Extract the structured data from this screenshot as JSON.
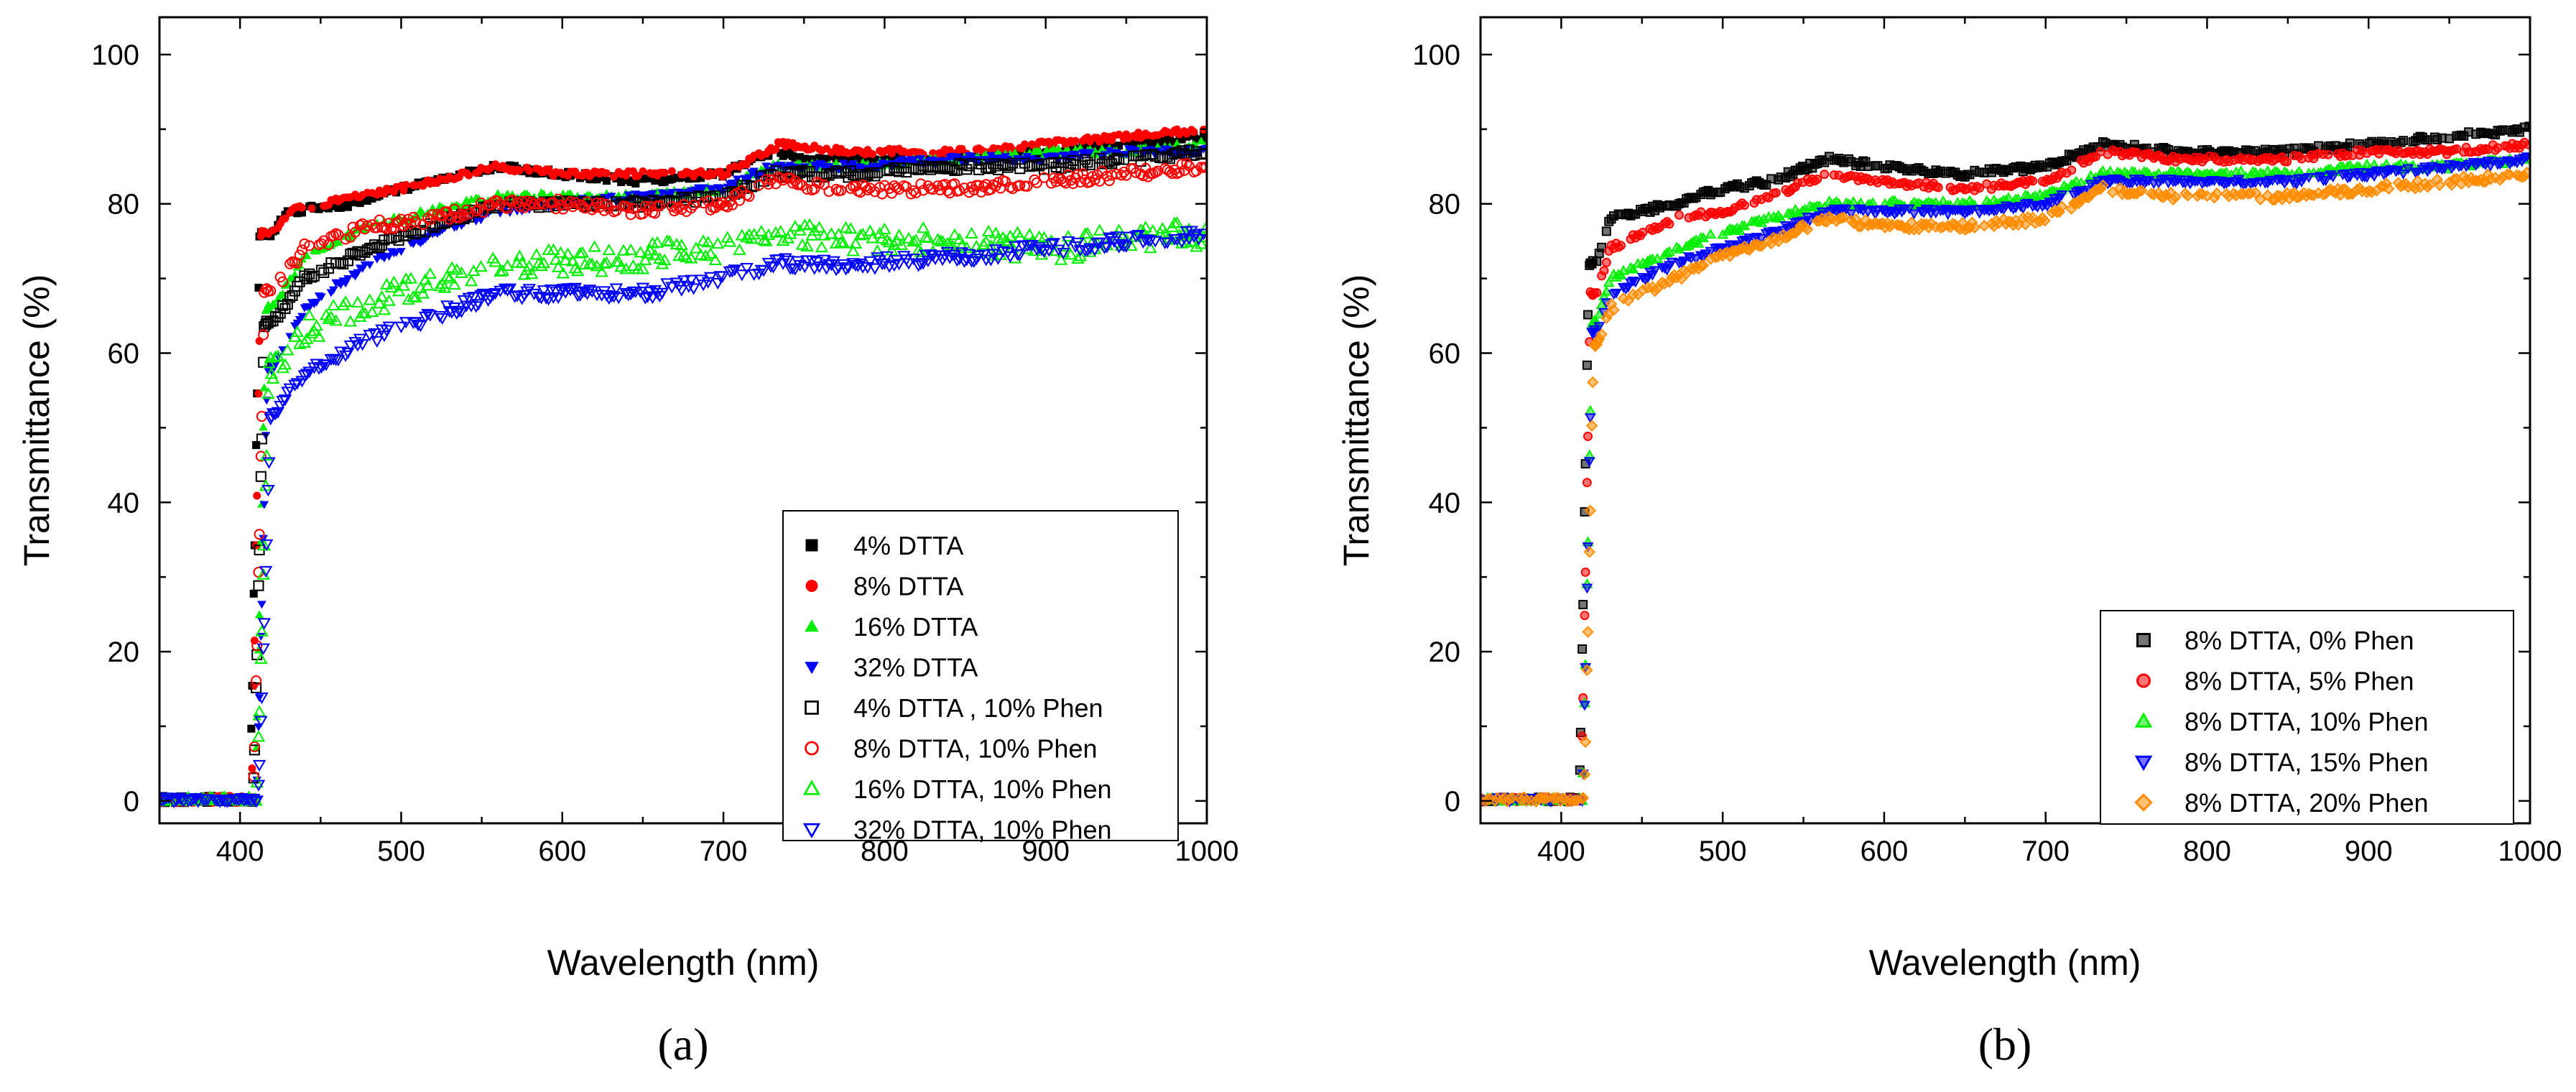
{
  "chart_data": [
    {
      "panel_label": "(a)",
      "type": "scatter",
      "xlabel": "Wavelength (nm)",
      "ylabel": "Transmittance (%)",
      "xlim": [
        350,
        1000
      ],
      "ylim": [
        -3,
        105
      ],
      "xticks": [
        400,
        500,
        600,
        700,
        800,
        900,
        1000
      ],
      "yticks": [
        0,
        20,
        40,
        60,
        80,
        100
      ],
      "legend_position": "lower-right",
      "series": [
        {
          "name": "4% DTTA",
          "color": "#000000",
          "marker": "square-filled",
          "edge": 406,
          "step_width": 6,
          "knots": [
            [
              420,
              76
            ],
            [
              430,
              79
            ],
            [
              470,
              80
            ],
            [
              500,
              82
            ],
            [
              560,
              85
            ],
            [
              600,
              84
            ],
            [
              650,
              83
            ],
            [
              700,
              84
            ],
            [
              730,
              87
            ],
            [
              760,
              86
            ],
            [
              800,
              86
            ],
            [
              850,
              86
            ],
            [
              900,
              87
            ],
            [
              950,
              88
            ],
            [
              1000,
              89
            ]
          ],
          "noise": 0.4
        },
        {
          "name": "8% DTTA",
          "color": "#ff0000",
          "marker": "circle-filled",
          "edge": 407,
          "step_width": 6,
          "knots": [
            [
              420,
              76
            ],
            [
              430,
              79
            ],
            [
              470,
              81
            ],
            [
              500,
              82
            ],
            [
              560,
              85
            ],
            [
              600,
              84
            ],
            [
              650,
              84
            ],
            [
              700,
              84
            ],
            [
              735,
              88
            ],
            [
              780,
              87
            ],
            [
              850,
              87
            ],
            [
              900,
              88
            ],
            [
              950,
              89
            ],
            [
              1000,
              90
            ]
          ],
          "noise": 0.4
        },
        {
          "name": "16% DTTA",
          "color": "#00ee00",
          "marker": "triangle-up-filled",
          "edge": 409,
          "step_width": 7,
          "knots": [
            [
              420,
              66
            ],
            [
              440,
              73
            ],
            [
              480,
              77
            ],
            [
              520,
              79
            ],
            [
              560,
              81
            ],
            [
              600,
              81
            ],
            [
              650,
              81
            ],
            [
              700,
              82
            ],
            [
              730,
              85
            ],
            [
              780,
              85
            ],
            [
              850,
              86
            ],
            [
              900,
              87
            ],
            [
              950,
              87
            ],
            [
              1000,
              88
            ]
          ],
          "noise": 0.5
        },
        {
          "name": "32% DTTA",
          "color": "#0000ff",
          "marker": "triangle-down-filled",
          "edge": 410,
          "step_width": 7,
          "knots": [
            [
              420,
              58
            ],
            [
              440,
              66
            ],
            [
              480,
              72
            ],
            [
              520,
              76
            ],
            [
              560,
              79
            ],
            [
              600,
              80
            ],
            [
              650,
              81
            ],
            [
              700,
              82
            ],
            [
              730,
              85
            ],
            [
              780,
              85
            ],
            [
              850,
              86
            ],
            [
              900,
              86
            ],
            [
              950,
              87
            ],
            [
              1000,
              87
            ]
          ],
          "noise": 0.5
        },
        {
          "name": "4% DTTA , 10% Phen",
          "color": "#000000",
          "marker": "square-open",
          "edge": 408,
          "step_width": 7,
          "knots": [
            [
              420,
              64
            ],
            [
              440,
              70
            ],
            [
              480,
              74
            ],
            [
              520,
              77
            ],
            [
              560,
              80
            ],
            [
              600,
              80
            ],
            [
              650,
              80
            ],
            [
              700,
              81
            ],
            [
              730,
              84
            ],
            [
              780,
              84
            ],
            [
              850,
              85
            ],
            [
              900,
              85
            ],
            [
              950,
              86
            ],
            [
              1000,
              87
            ]
          ],
          "noise": 0.5
        },
        {
          "name": "8% DTTA, 10% Phen",
          "color": "#ff0000",
          "marker": "circle-open",
          "edge": 408,
          "step_width": 7,
          "knots": [
            [
              420,
              68
            ],
            [
              440,
              74
            ],
            [
              480,
              77
            ],
            [
              520,
              78
            ],
            [
              560,
              80
            ],
            [
              600,
              80
            ],
            [
              650,
              79
            ],
            [
              700,
              80
            ],
            [
              730,
              83
            ],
            [
              780,
              82
            ],
            [
              850,
              82
            ],
            [
              900,
              83
            ],
            [
              950,
              84
            ],
            [
              1000,
              85
            ]
          ],
          "noise": 0.7
        },
        {
          "name": "16% DTTA, 10% Phen",
          "color": "#00ee00",
          "marker": "triangle-up-open",
          "edge": 410,
          "step_width": 8,
          "knots": [
            [
              420,
              58
            ],
            [
              440,
              63
            ],
            [
              480,
              67
            ],
            [
              520,
              69
            ],
            [
              560,
              72
            ],
            [
              600,
              72
            ],
            [
              650,
              73
            ],
            [
              700,
              74
            ],
            [
              730,
              76
            ],
            [
              780,
              75
            ],
            [
              850,
              75
            ],
            [
              900,
              74
            ],
            [
              950,
              75
            ],
            [
              1000,
              76
            ]
          ],
          "noise": 1.8
        },
        {
          "name": "32% DTTA, 10% Phen",
          "color": "#0000ff",
          "marker": "triangle-down-open",
          "edge": 411,
          "step_width": 8,
          "knots": [
            [
              420,
              52
            ],
            [
              440,
              57
            ],
            [
              480,
              62
            ],
            [
              520,
              65
            ],
            [
              560,
              68
            ],
            [
              600,
              68
            ],
            [
              650,
              68
            ],
            [
              700,
              70
            ],
            [
              730,
              72
            ],
            [
              780,
              72
            ],
            [
              850,
              73
            ],
            [
              900,
              74
            ],
            [
              950,
              75
            ],
            [
              1000,
              76
            ]
          ],
          "noise": 0.8
        }
      ]
    },
    {
      "panel_label": "(b)",
      "type": "scatter",
      "xlabel": "Wavelength (nm)",
      "ylabel": "Transmittance (%)",
      "xlim": [
        350,
        1000
      ],
      "ylim": [
        -3,
        105
      ],
      "xticks": [
        400,
        500,
        600,
        700,
        800,
        900,
        1000
      ],
      "yticks": [
        0,
        20,
        40,
        60,
        80,
        100
      ],
      "legend_position": "lower-right",
      "series": [
        {
          "name": "8% DTTA, 0% Phen",
          "color": "#000000",
          "marker": "square-half",
          "edge": 411,
          "step_width": 6,
          "knots": [
            [
              422,
              72
            ],
            [
              430,
              78
            ],
            [
              470,
              80
            ],
            [
              500,
              82
            ],
            [
              530,
              83
            ],
            [
              565,
              86
            ],
            [
              600,
              85
            ],
            [
              650,
              84
            ],
            [
              700,
              85
            ],
            [
              735,
              88
            ],
            [
              780,
              87
            ],
            [
              850,
              87
            ],
            [
              900,
              88
            ],
            [
              950,
              89
            ],
            [
              1000,
              90
            ]
          ],
          "noise": 0.4
        },
        {
          "name": "8% DTTA, 5% Phen",
          "color": "#ff0000",
          "marker": "circle-half",
          "edge": 412,
          "step_width": 6,
          "knots": [
            [
              422,
              68
            ],
            [
              430,
              74
            ],
            [
              470,
              78
            ],
            [
              500,
              79
            ],
            [
              530,
              81
            ],
            [
              565,
              84
            ],
            [
              600,
              83
            ],
            [
              650,
              82
            ],
            [
              700,
              83
            ],
            [
              735,
              87
            ],
            [
              780,
              86
            ],
            [
              850,
              86
            ],
            [
              900,
              87
            ],
            [
              950,
              87
            ],
            [
              1000,
              88
            ]
          ],
          "noise": 0.4
        },
        {
          "name": "8% DTTA, 10% Phen",
          "color": "#00ee00",
          "marker": "triangle-up-half",
          "edge": 413,
          "step_width": 6,
          "knots": [
            [
              422,
              64
            ],
            [
              430,
              70
            ],
            [
              470,
              74
            ],
            [
              500,
              76
            ],
            [
              530,
              78
            ],
            [
              565,
              80
            ],
            [
              600,
              80
            ],
            [
              650,
              80
            ],
            [
              700,
              81
            ],
            [
              735,
              84
            ],
            [
              780,
              84
            ],
            [
              850,
              84
            ],
            [
              900,
              85
            ],
            [
              950,
              85
            ],
            [
              1000,
              86
            ]
          ],
          "noise": 0.4
        },
        {
          "name": "8% DTTA, 15% Phen",
          "color": "#0000ff",
          "marker": "triangle-down-half",
          "edge": 413,
          "step_width": 6,
          "knots": [
            [
              422,
              63
            ],
            [
              430,
              68
            ],
            [
              470,
              72
            ],
            [
              500,
              74
            ],
            [
              530,
              76
            ],
            [
              565,
              79
            ],
            [
              600,
              79
            ],
            [
              650,
              79
            ],
            [
              700,
              80
            ],
            [
              735,
              83
            ],
            [
              780,
              83
            ],
            [
              850,
              83
            ],
            [
              900,
              84
            ],
            [
              950,
              85
            ],
            [
              1000,
              86
            ]
          ],
          "noise": 0.4
        },
        {
          "name": "8% DTTA, 20% Phen",
          "color": "#ff8c00",
          "marker": "diamond-half",
          "edge": 414,
          "step_width": 6,
          "knots": [
            [
              422,
              61
            ],
            [
              430,
              66
            ],
            [
              470,
              70
            ],
            [
              500,
              73
            ],
            [
              530,
              75
            ],
            [
              565,
              78
            ],
            [
              600,
              77
            ],
            [
              650,
              77
            ],
            [
              700,
              78
            ],
            [
              735,
              82
            ],
            [
              780,
              81
            ],
            [
              850,
              81
            ],
            [
              900,
              82
            ],
            [
              950,
              83
            ],
            [
              1000,
              84
            ]
          ],
          "noise": 0.5
        }
      ]
    }
  ]
}
